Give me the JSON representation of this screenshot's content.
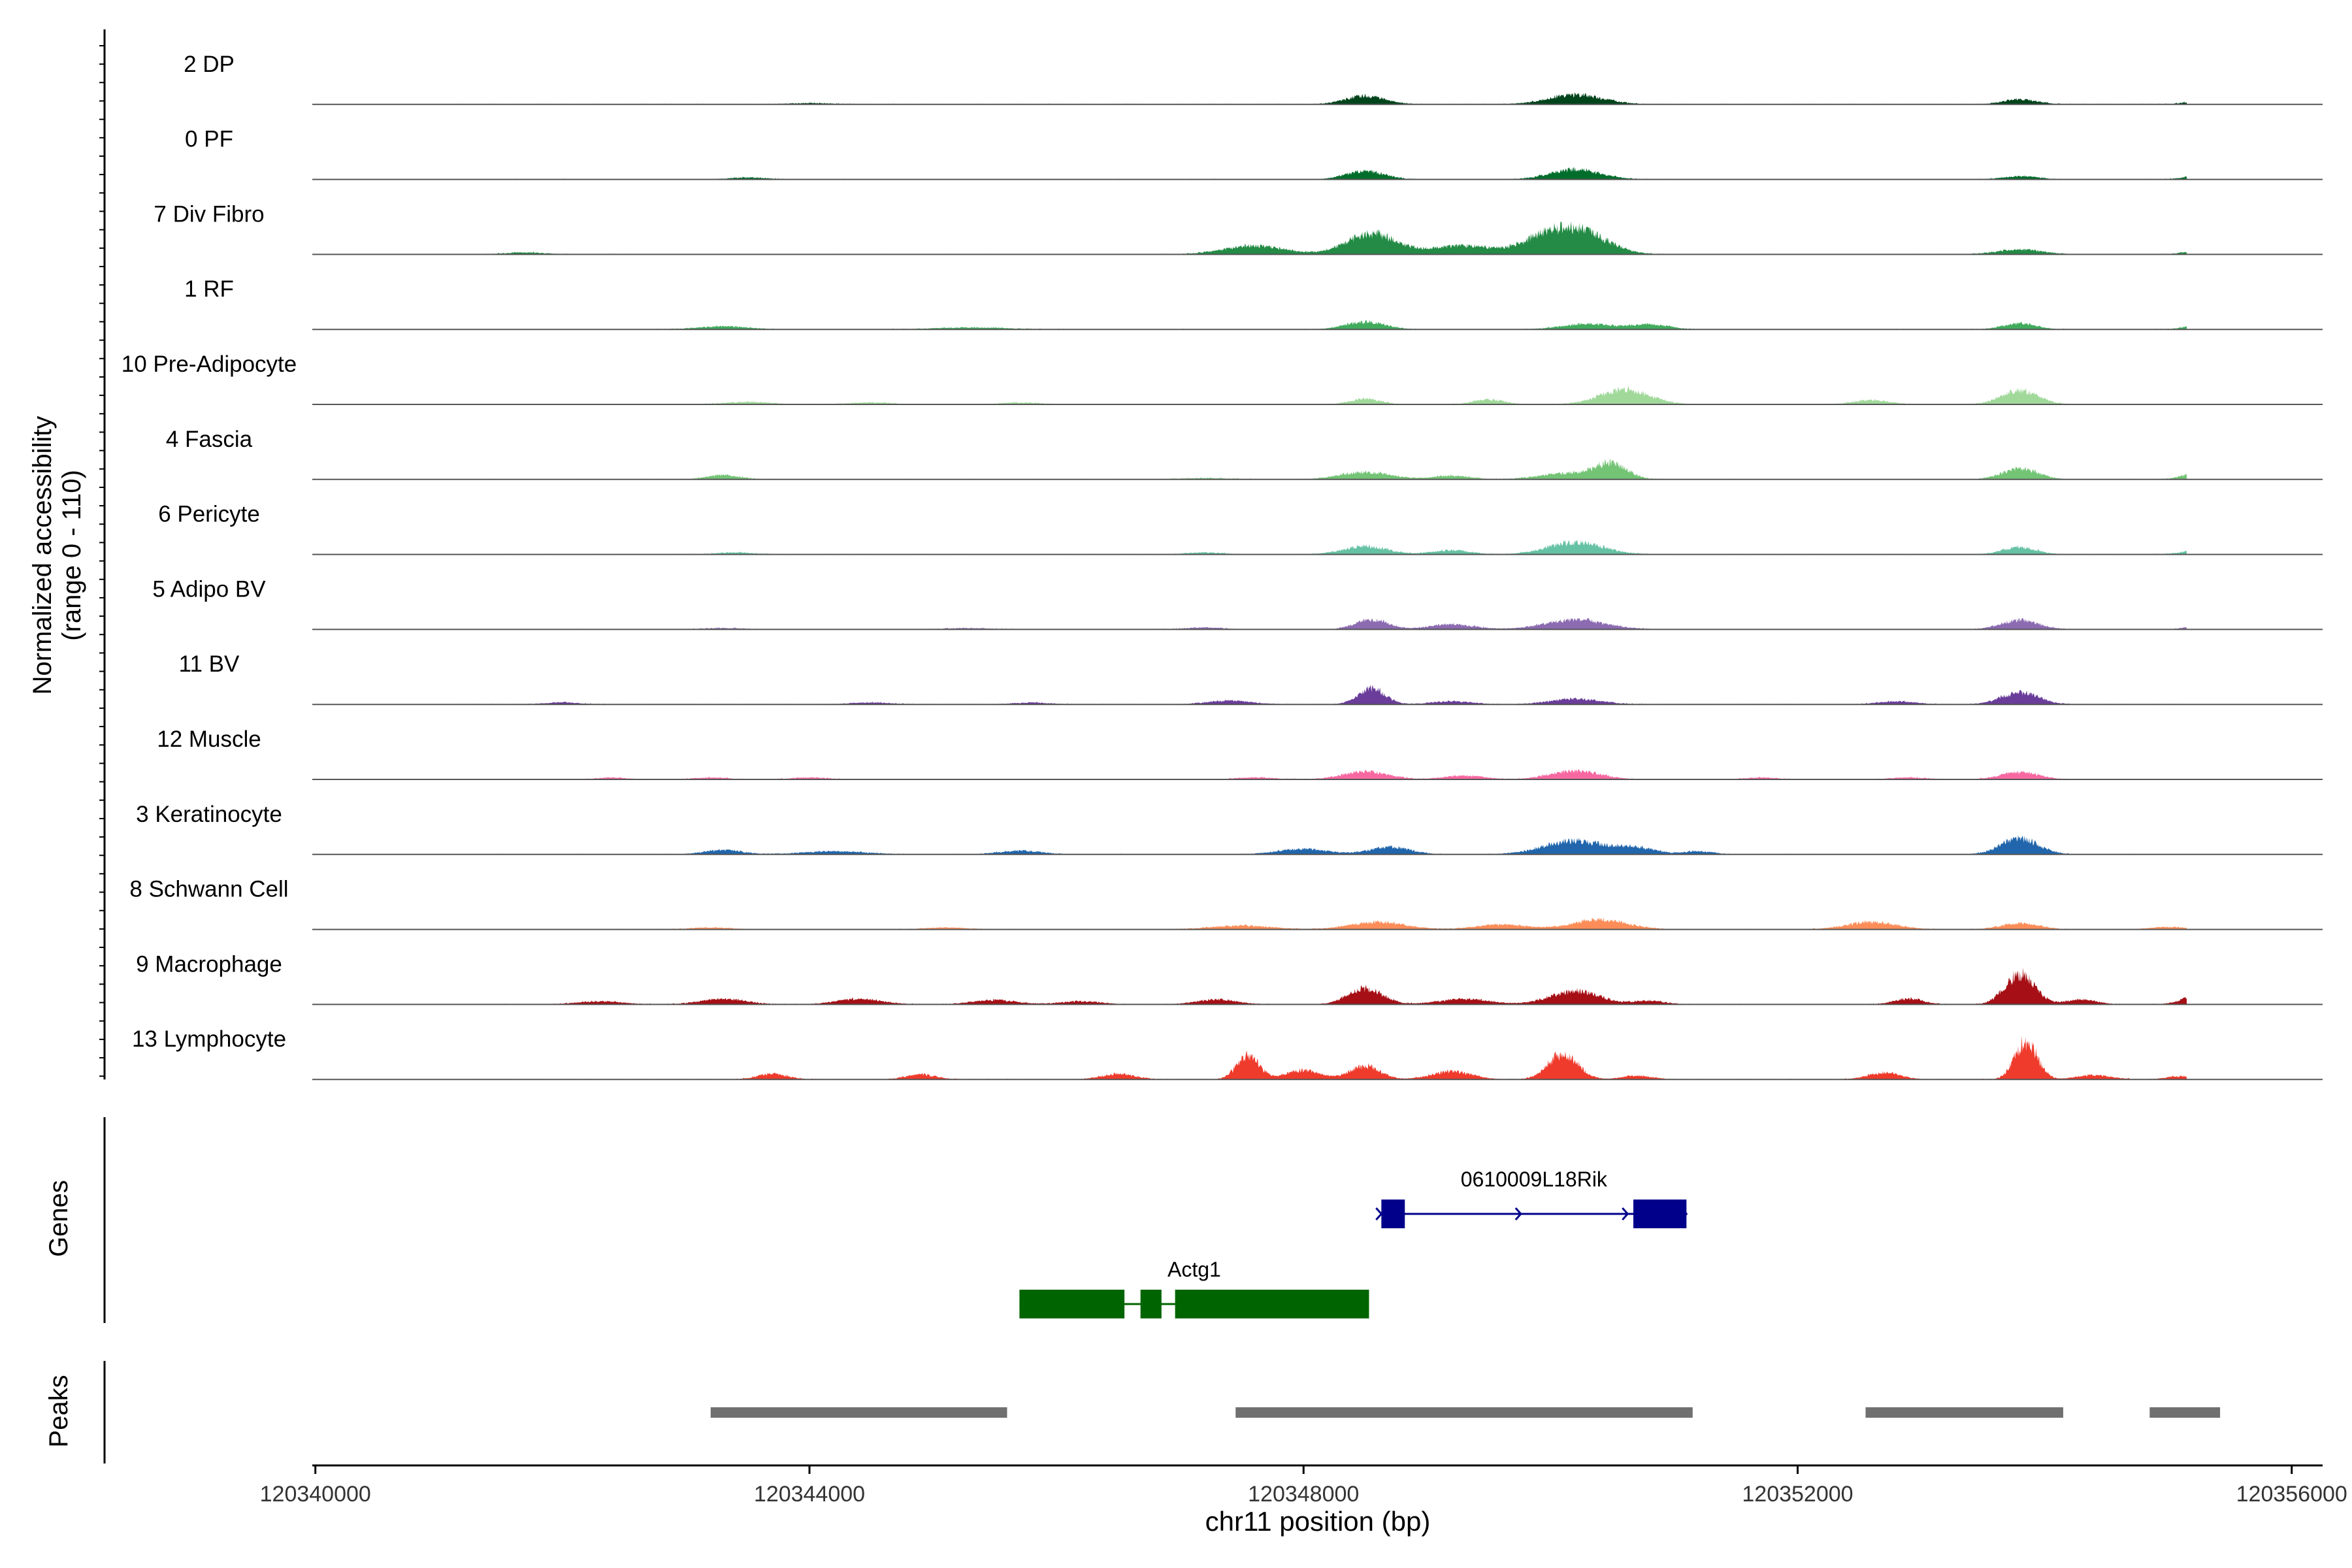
{
  "chart_data": {
    "type": "area",
    "chrom_label": "chr11 position (bp)",
    "ylabel_line1": "Normalized accessibility",
    "ylabel_line2": "(range 0 - 110)",
    "genes_label": "Genes",
    "peaks_label": "Peaks",
    "xlim": [
      120339975,
      120356250
    ],
    "ylim": [
      0,
      110
    ],
    "x_ticks": [
      120340000,
      120344000,
      120348000,
      120352000,
      120356000
    ],
    "x_tick_labels": [
      "120340000",
      "120344000",
      "120348000",
      "120352000",
      "120356000"
    ],
    "tracks": [
      {
        "name": "2 DP",
        "color": "#00441b",
        "peaks": [
          [
            120344000,
            2,
            180
          ],
          [
            120348500,
            14,
            160
          ],
          [
            120350200,
            16,
            220
          ],
          [
            120353800,
            8,
            140
          ],
          [
            120355300,
            7,
            130
          ]
        ]
      },
      {
        "name": "0 PF",
        "color": "#006d2c",
        "peaks": [
          [
            120343500,
            3,
            140
          ],
          [
            120348500,
            14,
            150
          ],
          [
            120350200,
            16,
            200
          ],
          [
            120353800,
            5,
            140
          ],
          [
            120355300,
            8,
            130
          ]
        ]
      },
      {
        "name": "7 Div Fibro",
        "color": "#238b45",
        "peaks": [
          [
            120341700,
            3,
            160
          ],
          [
            120347600,
            14,
            240
          ],
          [
            120348550,
            34,
            200
          ],
          [
            120349300,
            14,
            260
          ],
          [
            120349900,
            14,
            160
          ],
          [
            120350200,
            42,
            230
          ],
          [
            120353800,
            8,
            180
          ],
          [
            120355300,
            7,
            140
          ]
        ]
      },
      {
        "name": "1 RF",
        "color": "#41ab5d",
        "peaks": [
          [
            120343300,
            5,
            200
          ],
          [
            120345300,
            3,
            300
          ],
          [
            120348500,
            12,
            160
          ],
          [
            120350300,
            9,
            200
          ],
          [
            120350800,
            8,
            150
          ],
          [
            120353800,
            10,
            130
          ],
          [
            120355300,
            9,
            130
          ]
        ]
      },
      {
        "name": "10 Pre-Adipocyte",
        "color": "#a1d99b",
        "peaks": [
          [
            120343500,
            4,
            180
          ],
          [
            120344500,
            3,
            180
          ],
          [
            120345700,
            3,
            150
          ],
          [
            120348500,
            9,
            120
          ],
          [
            120349500,
            8,
            120
          ],
          [
            120350600,
            24,
            200
          ],
          [
            120352600,
            7,
            140
          ],
          [
            120353800,
            22,
            150
          ]
        ]
      },
      {
        "name": "4 Fascia",
        "color": "#74c476",
        "peaks": [
          [
            120343300,
            7,
            130
          ],
          [
            120347200,
            2,
            200
          ],
          [
            120348500,
            12,
            200
          ],
          [
            120349200,
            6,
            150
          ],
          [
            120350200,
            11,
            250
          ],
          [
            120350500,
            22,
            120
          ],
          [
            120353800,
            18,
            140
          ],
          [
            120355300,
            14,
            140
          ]
        ]
      },
      {
        "name": "6 Pericyte",
        "color": "#66c2a4",
        "peaks": [
          [
            120343400,
            3,
            150
          ],
          [
            120347200,
            3,
            150
          ],
          [
            120348500,
            13,
            180
          ],
          [
            120349200,
            7,
            150
          ],
          [
            120350200,
            20,
            220
          ],
          [
            120353800,
            12,
            130
          ],
          [
            120355300,
            9,
            140
          ]
        ]
      },
      {
        "name": "5 Adipo BV",
        "color": "#8c6bb1",
        "peaks": [
          [
            120343300,
            2,
            160
          ],
          [
            120345300,
            2,
            200
          ],
          [
            120347200,
            3,
            150
          ],
          [
            120348550,
            16,
            130
          ],
          [
            120349200,
            8,
            180
          ],
          [
            120350200,
            16,
            240
          ],
          [
            120353800,
            15,
            150
          ],
          [
            120355300,
            6,
            130
          ]
        ]
      },
      {
        "name": "11 BV",
        "color": "#6a3d9a",
        "peaks": [
          [
            120342000,
            3,
            140
          ],
          [
            120344500,
            3,
            160
          ],
          [
            120345800,
            3,
            140
          ],
          [
            120347400,
            6,
            180
          ],
          [
            120348550,
            26,
            110
          ],
          [
            120349200,
            5,
            160
          ],
          [
            120350200,
            9,
            200
          ],
          [
            120352800,
            5,
            150
          ],
          [
            120353800,
            20,
            150
          ]
        ]
      },
      {
        "name": "12 Muscle",
        "color": "#f768a1",
        "peaks": [
          [
            120342400,
            3,
            120
          ],
          [
            120343200,
            3,
            130
          ],
          [
            120344000,
            3,
            150
          ],
          [
            120347600,
            3,
            160
          ],
          [
            120348500,
            13,
            180
          ],
          [
            120349300,
            6,
            160
          ],
          [
            120350200,
            14,
            200
          ],
          [
            120351700,
            3,
            120
          ],
          [
            120352900,
            3,
            140
          ],
          [
            120353800,
            12,
            150
          ]
        ]
      },
      {
        "name": "3 Keratinocyte",
        "color": "#2166ac",
        "peaks": [
          [
            120343300,
            7,
            150
          ],
          [
            120344200,
            5,
            250
          ],
          [
            120345700,
            6,
            170
          ],
          [
            120348000,
            9,
            200
          ],
          [
            120348700,
            12,
            160
          ],
          [
            120350200,
            22,
            250
          ],
          [
            120350700,
            10,
            150
          ],
          [
            120351200,
            5,
            120
          ],
          [
            120353800,
            26,
            150
          ]
        ]
      },
      {
        "name": "8 Schwann Cell",
        "color": "#fc8d59",
        "peaks": [
          [
            120343200,
            3,
            160
          ],
          [
            120345100,
            3,
            160
          ],
          [
            120347500,
            6,
            240
          ],
          [
            120348600,
            12,
            220
          ],
          [
            120349600,
            8,
            200
          ],
          [
            120350400,
            16,
            220
          ],
          [
            120352600,
            12,
            200
          ],
          [
            120353800,
            10,
            150
          ],
          [
            120355000,
            4,
            140
          ]
        ]
      },
      {
        "name": "9 Macrophage",
        "color": "#a50f15",
        "peaks": [
          [
            120342300,
            5,
            180
          ],
          [
            120343300,
            9,
            180
          ],
          [
            120344400,
            9,
            180
          ],
          [
            120345500,
            7,
            180
          ],
          [
            120346200,
            5,
            160
          ],
          [
            120347300,
            8,
            160
          ],
          [
            120348500,
            26,
            140
          ],
          [
            120349300,
            9,
            200
          ],
          [
            120350200,
            22,
            200
          ],
          [
            120350800,
            6,
            120
          ],
          [
            120352900,
            9,
            120
          ],
          [
            120353800,
            50,
            120
          ],
          [
            120354300,
            8,
            120
          ],
          [
            120355300,
            20,
            140
          ]
        ]
      },
      {
        "name": "13 Lymphocyte",
        "color": "#ef3b2c",
        "peaks": [
          [
            120343700,
            9,
            120
          ],
          [
            120344900,
            8,
            120
          ],
          [
            120346500,
            9,
            130
          ],
          [
            120347550,
            39,
            90
          ],
          [
            120348000,
            15,
            140
          ],
          [
            120348500,
            22,
            120
          ],
          [
            120349200,
            13,
            160
          ],
          [
            120350100,
            42,
            120
          ],
          [
            120350700,
            6,
            120
          ],
          [
            120352700,
            11,
            130
          ],
          [
            120353850,
            62,
            90
          ],
          [
            120354400,
            7,
            140
          ],
          [
            120355100,
            5,
            110
          ]
        ]
      }
    ],
    "genes": [
      {
        "name": "0610009L18Rik",
        "color": "#00008b",
        "start": 120348630,
        "end": 120351100,
        "strand": "+",
        "exons": [
          [
            120348630,
            120348820
          ],
          [
            120350670,
            120351100
          ]
        ]
      },
      {
        "name": "Actg1",
        "color": "#006400",
        "start": 120345700,
        "end": 120348530,
        "strand": "-",
        "exons": [
          [
            120345700,
            120346550
          ],
          [
            120346680,
            120346850
          ],
          [
            120346960,
            120348530
          ]
        ]
      }
    ],
    "peaks": [
      [
        120343200,
        120345600
      ],
      [
        120347450,
        120351150
      ],
      [
        120352550,
        120354150
      ],
      [
        120354850,
        120355420
      ]
    ]
  }
}
